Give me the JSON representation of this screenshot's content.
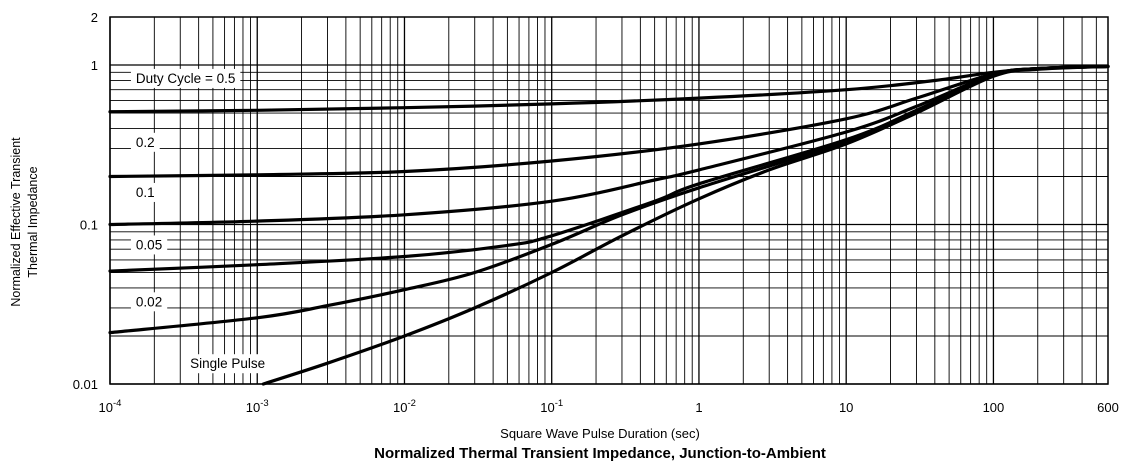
{
  "chart_data": {
    "type": "line",
    "title": "Normalized Thermal Transient Impedance, Junction-to-Ambient",
    "xlabel": "Square Wave Pulse Duration (sec)",
    "ylabel_lines": [
      "Normalized Effective Transient",
      "Thermal Impedance"
    ],
    "x_scale": "log",
    "y_scale": "log",
    "xlim": [
      0.0001,
      600
    ],
    "ylim": [
      0.01,
      2
    ],
    "grid": true,
    "x_ticks": [
      {
        "value": 0.0001,
        "base": "10",
        "exp": "-4"
      },
      {
        "value": 0.001,
        "base": "10",
        "exp": "-3"
      },
      {
        "value": 0.01,
        "base": "10",
        "exp": "-2"
      },
      {
        "value": 0.1,
        "base": "10",
        "exp": "-1"
      },
      {
        "value": 1,
        "base": "1",
        "exp": ""
      },
      {
        "value": 10,
        "base": "10",
        "exp": ""
      },
      {
        "value": 100,
        "base": "100",
        "exp": ""
      },
      {
        "value": 600,
        "base": "600",
        "exp": ""
      }
    ],
    "y_ticks": [
      {
        "value": 2,
        "label": "2"
      },
      {
        "value": 1,
        "label": "1"
      },
      {
        "value": 0.1,
        "label": "0.1"
      },
      {
        "value": 0.01,
        "label": "0.01"
      }
    ],
    "series": [
      {
        "name": "Duty Cycle = 0.5",
        "label_at": [
          0.00015,
          0.83
        ],
        "x": [
          0.0001,
          0.001,
          0.01,
          0.1,
          1,
          10,
          40,
          100,
          200,
          600
        ],
        "y": [
          0.51,
          0.52,
          0.54,
          0.57,
          0.62,
          0.7,
          0.8,
          0.9,
          0.95,
          0.98
        ]
      },
      {
        "name": "0.2",
        "label_at": [
          0.00015,
          0.33
        ],
        "x": [
          0.0001,
          0.001,
          0.01,
          0.1,
          1,
          10,
          30,
          100,
          200,
          600
        ],
        "y": [
          0.2,
          0.205,
          0.215,
          0.25,
          0.32,
          0.46,
          0.62,
          0.88,
          0.95,
          0.98
        ]
      },
      {
        "name": "0.1",
        "label_at": [
          0.00015,
          0.16
        ],
        "x": [
          0.0001,
          0.001,
          0.01,
          0.1,
          0.5,
          1,
          10,
          30,
          100,
          200,
          600
        ],
        "y": [
          0.1,
          0.105,
          0.115,
          0.14,
          0.19,
          0.22,
          0.38,
          0.55,
          0.87,
          0.95,
          0.98
        ]
      },
      {
        "name": "0.05",
        "label_at": [
          0.00015,
          0.075
        ],
        "x": [
          0.0001,
          0.001,
          0.01,
          0.05,
          0.1,
          0.5,
          1,
          10,
          30,
          100,
          200,
          600
        ],
        "y": [
          0.051,
          0.056,
          0.063,
          0.074,
          0.085,
          0.14,
          0.18,
          0.34,
          0.52,
          0.86,
          0.95,
          0.98
        ]
      },
      {
        "name": "0.02",
        "label_at": [
          0.00015,
          0.033
        ],
        "x": [
          0.0001,
          0.001,
          0.003,
          0.01,
          0.03,
          0.1,
          0.3,
          1,
          10,
          30,
          100,
          200,
          600
        ],
        "y": [
          0.021,
          0.026,
          0.031,
          0.039,
          0.05,
          0.075,
          0.115,
          0.17,
          0.33,
          0.51,
          0.86,
          0.95,
          0.98
        ]
      },
      {
        "name": "Single Pulse",
        "label_at": [
          0.00035,
          0.0135
        ],
        "x": [
          0.0011,
          0.003,
          0.01,
          0.03,
          0.1,
          0.3,
          1,
          3,
          10,
          30,
          100,
          200,
          600
        ],
        "y": [
          0.01,
          0.0135,
          0.02,
          0.03,
          0.05,
          0.085,
          0.145,
          0.22,
          0.32,
          0.5,
          0.85,
          0.94,
          0.98
        ]
      }
    ]
  }
}
